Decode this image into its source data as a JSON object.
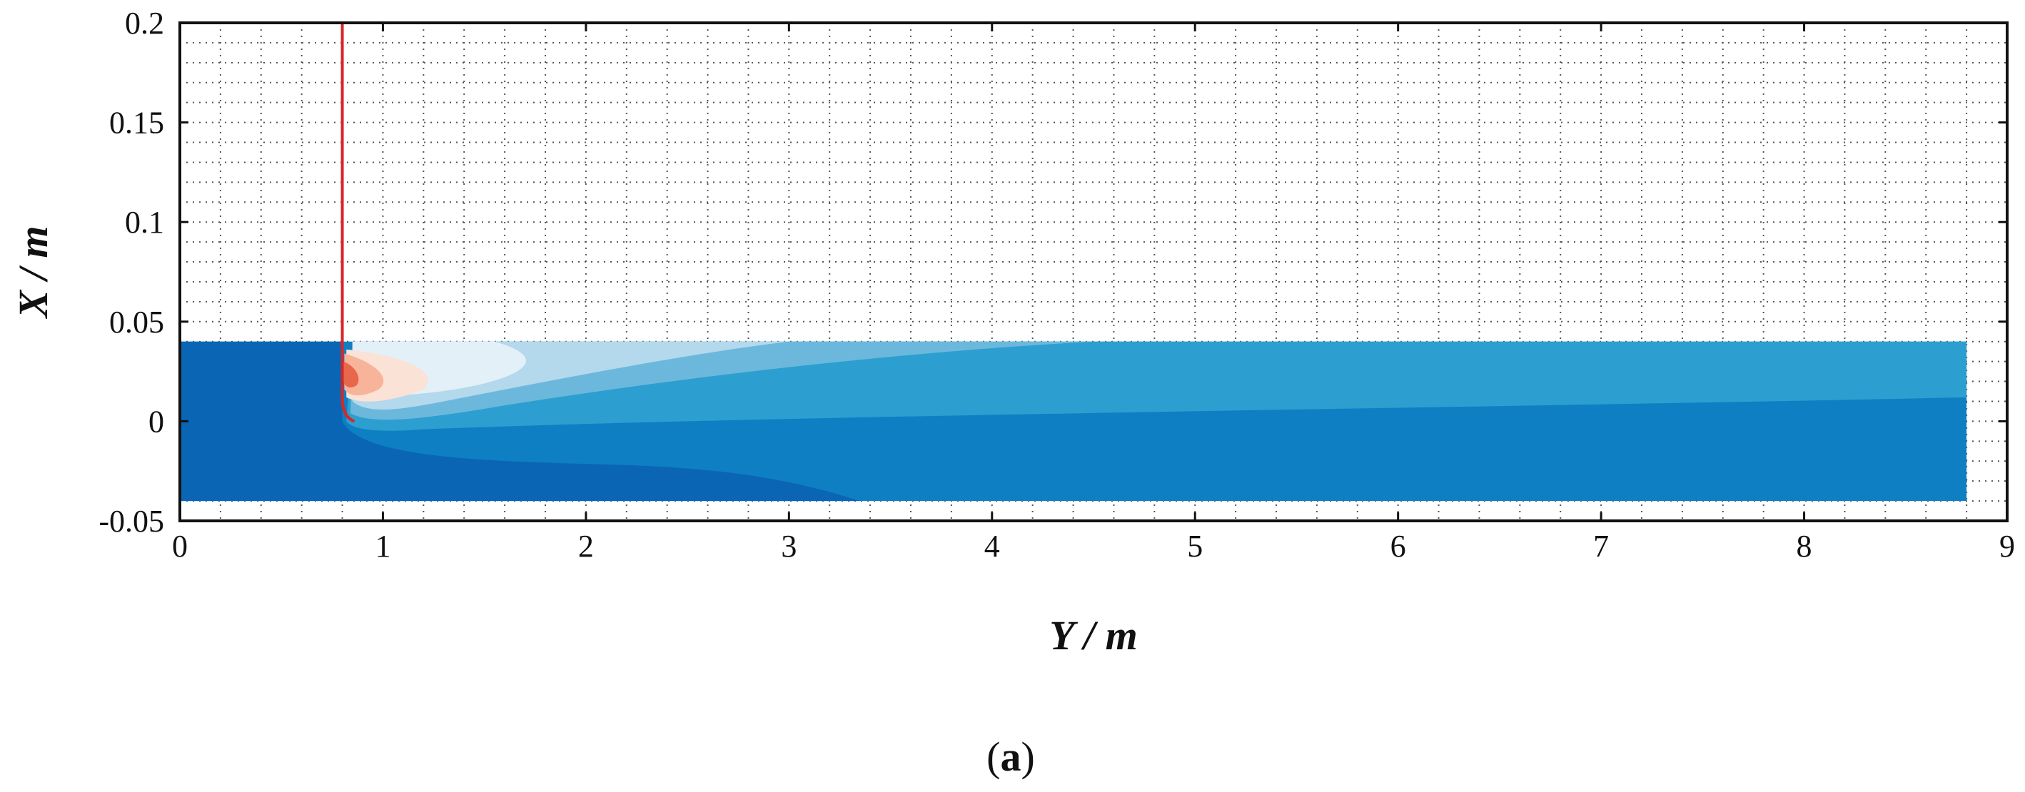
{
  "chart_data": {
    "type": "heatmap",
    "title": "",
    "xlabel": "Y / m",
    "ylabel": "X / m",
    "xlim": [
      0,
      9
    ],
    "ylim": [
      -0.05,
      0.2
    ],
    "x_ticks": [
      0,
      1,
      2,
      3,
      4,
      5,
      6,
      7,
      8,
      9
    ],
    "y_ticks": [
      -0.05,
      0,
      0.05,
      0.1,
      0.15,
      0.2
    ],
    "x_tick_labels": [
      "0",
      "1",
      "2",
      "3",
      "4",
      "5",
      "6",
      "7",
      "8",
      "9"
    ],
    "y_tick_labels": [
      "-0.05",
      "0",
      "0.05",
      "0.1",
      "0.15",
      "0.2"
    ],
    "grid": "dotted",
    "domain": {
      "x": [
        0,
        8.8
      ],
      "y": [
        -0.04,
        0.04
      ]
    },
    "vertical_line": {
      "x": 0.8,
      "y_from": 0.04,
      "y_to": 0.2,
      "color": "#d62728"
    },
    "colors": {
      "deep": "#0a66b5",
      "mid_dark": "#0f7fc3",
      "mid": "#2c9fd0",
      "light": "#6cb8dc",
      "lighter": "#b4d8ec",
      "pale": "#e3f0f8",
      "warm_pale": "#fbe2d6",
      "warm": "#f7b49a",
      "hot": "#e8664a"
    }
  },
  "caption": {
    "open": "(",
    "letter": "a",
    "close": ")"
  }
}
